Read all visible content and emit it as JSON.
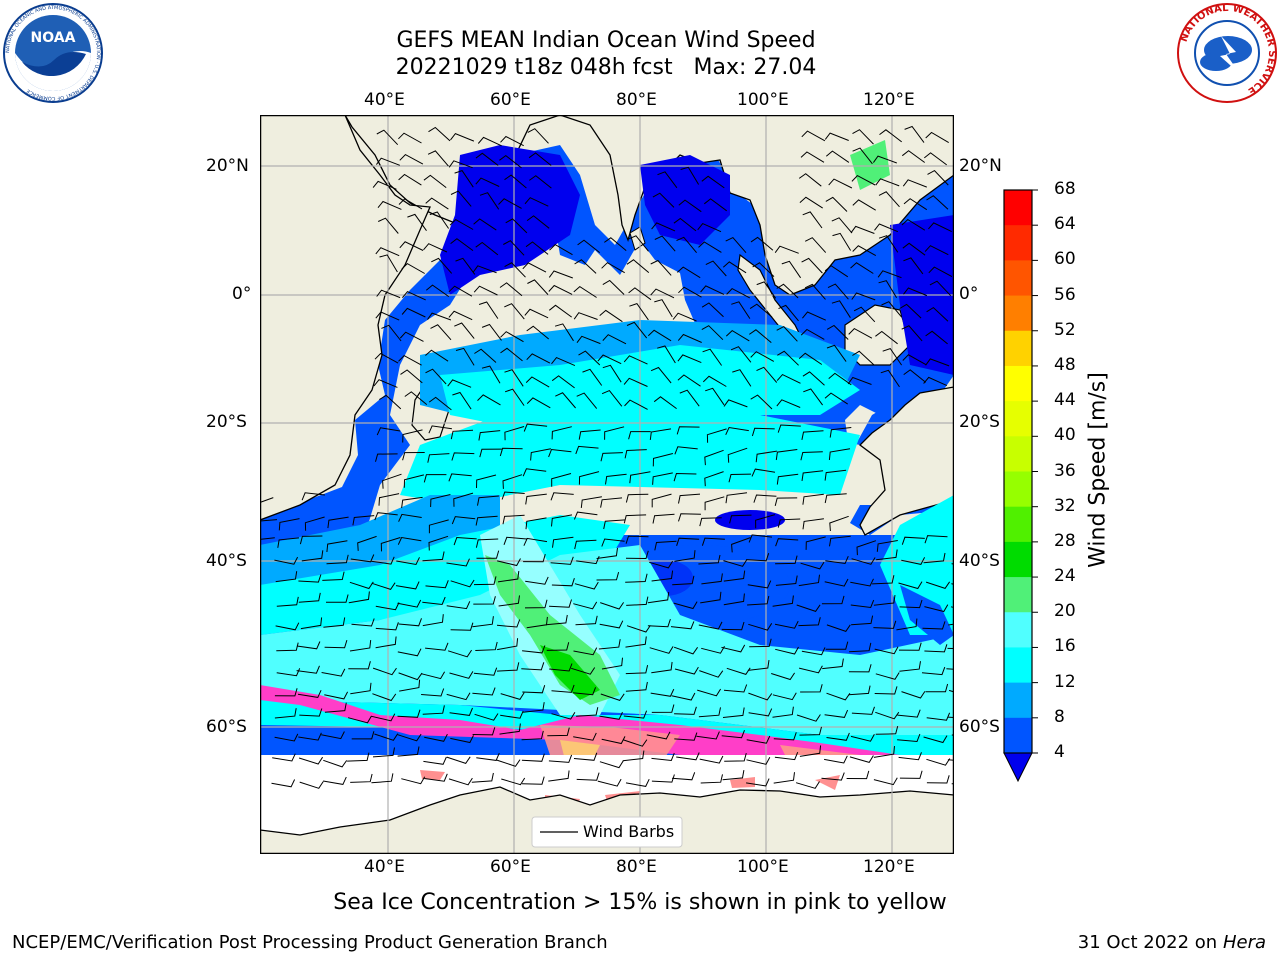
{
  "header": {
    "title_line1": "GEFS MEAN Indian Ocean Wind Speed",
    "title_line2": "20221029 t18z 048h fcst   Max: 27.04"
  },
  "logos": {
    "left": "NOAA",
    "left_ring": "NATIONAL OCEANIC AND ATMOSPHERIC ADMINISTRATION · U.S. DEPARTMENT OF COMMERCE",
    "right_ring": "NATIONAL WEATHER SERVICE"
  },
  "map": {
    "lon_ticks": [
      "40°E",
      "60°E",
      "80°E",
      "100°E",
      "120°E"
    ],
    "lat_ticks": [
      "20°N",
      "0°",
      "20°S",
      "40°S",
      "60°S"
    ],
    "legend_label": "Wind Barbs"
  },
  "colorbar": {
    "label": "Wind Speed [m/s]",
    "ticks": [
      "68",
      "64",
      "60",
      "56",
      "52",
      "48",
      "44",
      "40",
      "36",
      "32",
      "28",
      "24",
      "20",
      "16",
      "12",
      "8",
      "4"
    ],
    "colors": [
      "#ff0000",
      "#ff2a00",
      "#ff5500",
      "#ff7f00",
      "#ffaa00",
      "#ffd200",
      "#ffff00",
      "#e6ff00",
      "#c8ff00",
      "#96ff00",
      "#50f000",
      "#00dc00",
      "#50f078",
      "#96ffff",
      "#50ffff",
      "#00ffff",
      "#00aaff",
      "#0055ff",
      "#0000ee"
    ]
  },
  "caption": "Sea Ice Concentration > 15% is shown in pink to yellow",
  "footer": {
    "left": "NCEP/EMC/Verification Post Processing Product Generation Branch",
    "right_prefix": "31 Oct 2022 on ",
    "right_host": "Hera"
  }
}
